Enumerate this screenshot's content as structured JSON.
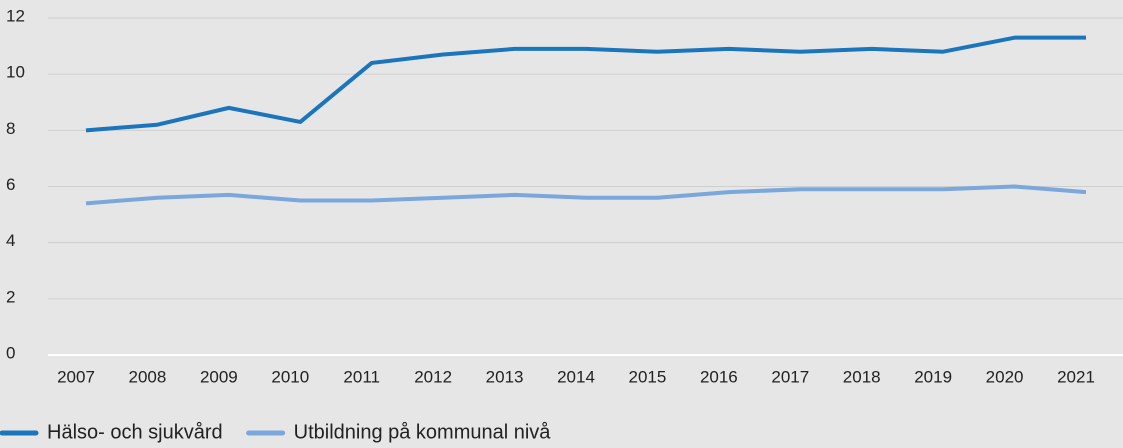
{
  "chart_data": {
    "type": "line",
    "categories": [
      "2007",
      "2008",
      "2009",
      "2010",
      "2011",
      "2012",
      "2013",
      "2014",
      "2015",
      "2016",
      "2017",
      "2018",
      "2019",
      "2020",
      "2021"
    ],
    "series": [
      {
        "name": "Hälso- och sjukvård",
        "color": "#1b75bc",
        "values": [
          8.0,
          8.2,
          8.8,
          8.3,
          10.4,
          10.7,
          10.9,
          10.9,
          10.8,
          10.9,
          10.8,
          10.9,
          10.8,
          11.3,
          11.3
        ]
      },
      {
        "name": "Utbildning på kommunal nivå",
        "color": "#7aa7dc",
        "values": [
          5.4,
          5.6,
          5.7,
          5.5,
          5.5,
          5.6,
          5.7,
          5.6,
          5.6,
          5.8,
          5.9,
          5.9,
          5.9,
          6.0,
          5.8
        ]
      }
    ],
    "ylim": [
      0,
      12
    ],
    "yticks": [
      0,
      2,
      4,
      6,
      8,
      10,
      12
    ],
    "grid": true,
    "legend": "bottom"
  }
}
